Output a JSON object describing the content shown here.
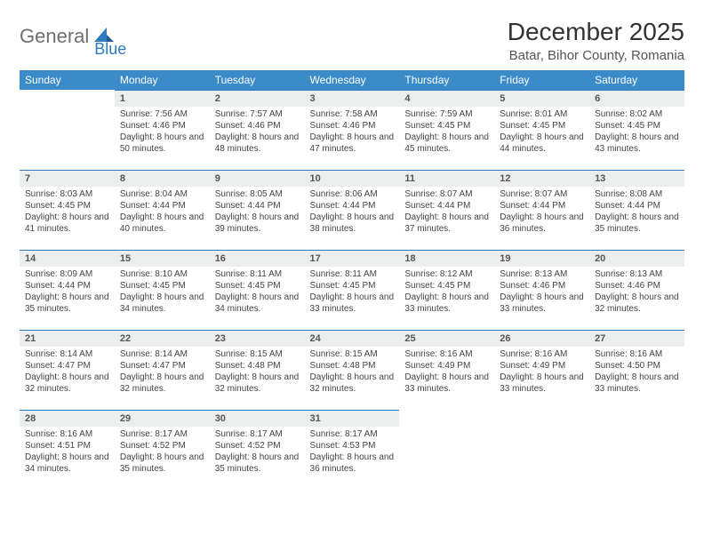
{
  "logo": {
    "text1": "General",
    "text2": "Blue"
  },
  "title": "December 2025",
  "location": "Batar, Bihor County, Romania",
  "colors": {
    "header_bg": "#3b8bc9",
    "header_text": "#ffffff",
    "daynum_bg": "#eceded",
    "border": "#2f7bbf",
    "logo_gray": "#6d6e71",
    "logo_blue": "#2f7bbf"
  },
  "weekdays": [
    "Sunday",
    "Monday",
    "Tuesday",
    "Wednesday",
    "Thursday",
    "Friday",
    "Saturday"
  ],
  "weeks": [
    [
      {
        "day": "",
        "sunrise": "",
        "sunset": "",
        "daylight": ""
      },
      {
        "day": "1",
        "sunrise": "Sunrise: 7:56 AM",
        "sunset": "Sunset: 4:46 PM",
        "daylight": "Daylight: 8 hours and 50 minutes."
      },
      {
        "day": "2",
        "sunrise": "Sunrise: 7:57 AM",
        "sunset": "Sunset: 4:46 PM",
        "daylight": "Daylight: 8 hours and 48 minutes."
      },
      {
        "day": "3",
        "sunrise": "Sunrise: 7:58 AM",
        "sunset": "Sunset: 4:46 PM",
        "daylight": "Daylight: 8 hours and 47 minutes."
      },
      {
        "day": "4",
        "sunrise": "Sunrise: 7:59 AM",
        "sunset": "Sunset: 4:45 PM",
        "daylight": "Daylight: 8 hours and 45 minutes."
      },
      {
        "day": "5",
        "sunrise": "Sunrise: 8:01 AM",
        "sunset": "Sunset: 4:45 PM",
        "daylight": "Daylight: 8 hours and 44 minutes."
      },
      {
        "day": "6",
        "sunrise": "Sunrise: 8:02 AM",
        "sunset": "Sunset: 4:45 PM",
        "daylight": "Daylight: 8 hours and 43 minutes."
      }
    ],
    [
      {
        "day": "7",
        "sunrise": "Sunrise: 8:03 AM",
        "sunset": "Sunset: 4:45 PM",
        "daylight": "Daylight: 8 hours and 41 minutes."
      },
      {
        "day": "8",
        "sunrise": "Sunrise: 8:04 AM",
        "sunset": "Sunset: 4:44 PM",
        "daylight": "Daylight: 8 hours and 40 minutes."
      },
      {
        "day": "9",
        "sunrise": "Sunrise: 8:05 AM",
        "sunset": "Sunset: 4:44 PM",
        "daylight": "Daylight: 8 hours and 39 minutes."
      },
      {
        "day": "10",
        "sunrise": "Sunrise: 8:06 AM",
        "sunset": "Sunset: 4:44 PM",
        "daylight": "Daylight: 8 hours and 38 minutes."
      },
      {
        "day": "11",
        "sunrise": "Sunrise: 8:07 AM",
        "sunset": "Sunset: 4:44 PM",
        "daylight": "Daylight: 8 hours and 37 minutes."
      },
      {
        "day": "12",
        "sunrise": "Sunrise: 8:07 AM",
        "sunset": "Sunset: 4:44 PM",
        "daylight": "Daylight: 8 hours and 36 minutes."
      },
      {
        "day": "13",
        "sunrise": "Sunrise: 8:08 AM",
        "sunset": "Sunset: 4:44 PM",
        "daylight": "Daylight: 8 hours and 35 minutes."
      }
    ],
    [
      {
        "day": "14",
        "sunrise": "Sunrise: 8:09 AM",
        "sunset": "Sunset: 4:44 PM",
        "daylight": "Daylight: 8 hours and 35 minutes."
      },
      {
        "day": "15",
        "sunrise": "Sunrise: 8:10 AM",
        "sunset": "Sunset: 4:45 PM",
        "daylight": "Daylight: 8 hours and 34 minutes."
      },
      {
        "day": "16",
        "sunrise": "Sunrise: 8:11 AM",
        "sunset": "Sunset: 4:45 PM",
        "daylight": "Daylight: 8 hours and 34 minutes."
      },
      {
        "day": "17",
        "sunrise": "Sunrise: 8:11 AM",
        "sunset": "Sunset: 4:45 PM",
        "daylight": "Daylight: 8 hours and 33 minutes."
      },
      {
        "day": "18",
        "sunrise": "Sunrise: 8:12 AM",
        "sunset": "Sunset: 4:45 PM",
        "daylight": "Daylight: 8 hours and 33 minutes."
      },
      {
        "day": "19",
        "sunrise": "Sunrise: 8:13 AM",
        "sunset": "Sunset: 4:46 PM",
        "daylight": "Daylight: 8 hours and 33 minutes."
      },
      {
        "day": "20",
        "sunrise": "Sunrise: 8:13 AM",
        "sunset": "Sunset: 4:46 PM",
        "daylight": "Daylight: 8 hours and 32 minutes."
      }
    ],
    [
      {
        "day": "21",
        "sunrise": "Sunrise: 8:14 AM",
        "sunset": "Sunset: 4:47 PM",
        "daylight": "Daylight: 8 hours and 32 minutes."
      },
      {
        "day": "22",
        "sunrise": "Sunrise: 8:14 AM",
        "sunset": "Sunset: 4:47 PM",
        "daylight": "Daylight: 8 hours and 32 minutes."
      },
      {
        "day": "23",
        "sunrise": "Sunrise: 8:15 AM",
        "sunset": "Sunset: 4:48 PM",
        "daylight": "Daylight: 8 hours and 32 minutes."
      },
      {
        "day": "24",
        "sunrise": "Sunrise: 8:15 AM",
        "sunset": "Sunset: 4:48 PM",
        "daylight": "Daylight: 8 hours and 32 minutes."
      },
      {
        "day": "25",
        "sunrise": "Sunrise: 8:16 AM",
        "sunset": "Sunset: 4:49 PM",
        "daylight": "Daylight: 8 hours and 33 minutes."
      },
      {
        "day": "26",
        "sunrise": "Sunrise: 8:16 AM",
        "sunset": "Sunset: 4:49 PM",
        "daylight": "Daylight: 8 hours and 33 minutes."
      },
      {
        "day": "27",
        "sunrise": "Sunrise: 8:16 AM",
        "sunset": "Sunset: 4:50 PM",
        "daylight": "Daylight: 8 hours and 33 minutes."
      }
    ],
    [
      {
        "day": "28",
        "sunrise": "Sunrise: 8:16 AM",
        "sunset": "Sunset: 4:51 PM",
        "daylight": "Daylight: 8 hours and 34 minutes."
      },
      {
        "day": "29",
        "sunrise": "Sunrise: 8:17 AM",
        "sunset": "Sunset: 4:52 PM",
        "daylight": "Daylight: 8 hours and 35 minutes."
      },
      {
        "day": "30",
        "sunrise": "Sunrise: 8:17 AM",
        "sunset": "Sunset: 4:52 PM",
        "daylight": "Daylight: 8 hours and 35 minutes."
      },
      {
        "day": "31",
        "sunrise": "Sunrise: 8:17 AM",
        "sunset": "Sunset: 4:53 PM",
        "daylight": "Daylight: 8 hours and 36 minutes."
      },
      {
        "day": "",
        "sunrise": "",
        "sunset": "",
        "daylight": ""
      },
      {
        "day": "",
        "sunrise": "",
        "sunset": "",
        "daylight": ""
      },
      {
        "day": "",
        "sunrise": "",
        "sunset": "",
        "daylight": ""
      }
    ]
  ]
}
